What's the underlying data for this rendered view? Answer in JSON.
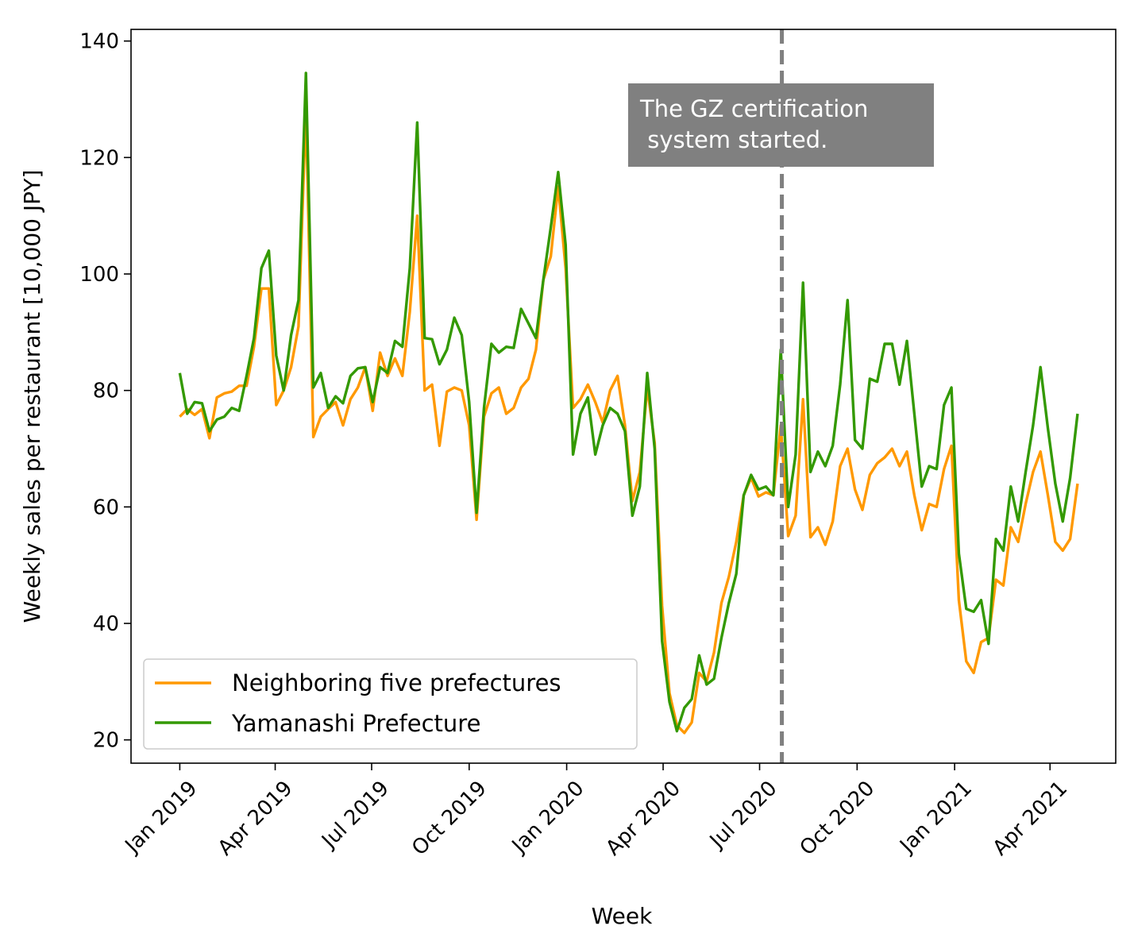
{
  "chart_data": {
    "type": "line",
    "xlabel": "Week",
    "ylabel": "Weekly sales per restaurant [10,000 JPY]",
    "ylim": [
      16,
      142
    ],
    "yticks": [
      20,
      40,
      60,
      80,
      100,
      120,
      140
    ],
    "xlim": [
      "2018-11-16",
      "2021-06-02"
    ],
    "xticks": [
      {
        "date": "2019-01-01",
        "label": "Jan 2019"
      },
      {
        "date": "2019-04-01",
        "label": "Apr 2019"
      },
      {
        "date": "2019-07-01",
        "label": "Jul 2019"
      },
      {
        "date": "2019-10-01",
        "label": "Oct 2019"
      },
      {
        "date": "2020-01-01",
        "label": "Jan 2020"
      },
      {
        "date": "2020-04-01",
        "label": "Apr 2020"
      },
      {
        "date": "2020-07-01",
        "label": "Jul 2020"
      },
      {
        "date": "2020-10-01",
        "label": "Oct 2020"
      },
      {
        "date": "2021-01-01",
        "label": "Jan 2021"
      },
      {
        "date": "2021-04-01",
        "label": "Apr 2021"
      }
    ],
    "grid": false,
    "legend_position": "lower-left",
    "start_week": "2019-01-01",
    "week_interval_days": 7,
    "series": [
      {
        "name": "Neighboring five prefectures",
        "color": "#ff9900",
        "values": [
          75.5,
          76.8,
          75.8,
          76.8,
          71.8,
          78.8,
          79.5,
          79.8,
          80.8,
          80.8,
          87.5,
          97.5,
          97.5,
          77.5,
          80.0,
          84.0,
          91.0,
          128.5,
          72.0,
          75.5,
          76.8,
          78.0,
          74.0,
          78.5,
          80.5,
          84.0,
          76.5,
          86.5,
          82.5,
          85.5,
          82.5,
          93.5,
          110.0,
          80.0,
          81.0,
          70.5,
          79.8,
          80.5,
          80.0,
          74.0,
          57.8,
          75.5,
          79.5,
          80.5,
          76.0,
          77.0,
          80.5,
          82.0,
          87.0,
          99.0,
          103.0,
          115.0,
          101.0,
          77.0,
          78.5,
          81.0,
          78.0,
          74.5,
          80.0,
          82.5,
          74.0,
          61.0,
          66.0,
          80.5,
          71.0,
          43.0,
          28.0,
          22.5,
          21.2,
          23.0,
          31.5,
          30.0,
          35.0,
          43.5,
          48.0,
          54.0,
          62.0,
          65.0,
          61.8,
          62.5,
          62.0,
          74.0,
          55.0,
          58.5,
          78.5,
          54.8,
          56.5,
          53.5,
          57.5,
          67.0,
          70.0,
          63.0,
          59.5,
          65.5,
          67.5,
          68.5,
          70.0,
          67.0,
          69.5,
          62.0,
          56.0,
          60.5,
          60.0,
          66.5,
          70.5,
          44.0,
          33.5,
          31.5,
          36.8,
          37.5,
          47.5,
          46.5,
          56.5,
          54.0,
          60.5,
          66.0,
          69.5,
          62.0,
          54.0,
          52.5,
          54.5,
          64.0
        ]
      },
      {
        "name": "Yamanashi Prefecture",
        "color": "#339900",
        "values": [
          83.0,
          76.0,
          78.0,
          77.8,
          73.0,
          75.0,
          75.5,
          77.0,
          76.5,
          82.5,
          89.0,
          101.0,
          104.0,
          86.0,
          80.0,
          89.5,
          95.5,
          134.5,
          80.5,
          83.0,
          77.0,
          79.0,
          77.8,
          82.5,
          83.8,
          84.0,
          78.0,
          84.0,
          83.0,
          88.5,
          87.5,
          101.0,
          126.0,
          89.0,
          88.8,
          84.5,
          87.0,
          92.5,
          89.5,
          78.0,
          59.0,
          77.0,
          88.0,
          86.5,
          87.5,
          87.3,
          94.0,
          91.5,
          89.0,
          99.0,
          108.0,
          117.5,
          105.0,
          69.0,
          76.0,
          78.8,
          69.0,
          74.0,
          77.0,
          76.0,
          73.0,
          58.5,
          63.5,
          83.0,
          70.0,
          37.0,
          26.5,
          21.5,
          25.5,
          27.0,
          34.5,
          29.5,
          30.5,
          37.5,
          43.5,
          48.5,
          62.0,
          65.5,
          63.0,
          63.5,
          62.0,
          87.0,
          60.0,
          69.0,
          98.5,
          66.0,
          69.5,
          67.0,
          70.5,
          81.0,
          95.5,
          71.5,
          70.0,
          82.0,
          81.5,
          88.0,
          88.0,
          81.0,
          88.5,
          76.0,
          63.5,
          67.0,
          66.5,
          77.5,
          80.5,
          52.0,
          42.5,
          42.0,
          44.0,
          36.5,
          54.5,
          52.5,
          63.5,
          57.5,
          66.0,
          74.0,
          84.0,
          73.5,
          64.0,
          57.5,
          65.0,
          76.0
        ]
      }
    ],
    "vline": {
      "date": "2020-07-22",
      "color": "#808080",
      "style": "dashed"
    },
    "annotation": {
      "line1": "The GZ certification",
      "line2": " system started.",
      "box_color": "#808080",
      "text_color": "#ffffff"
    }
  }
}
